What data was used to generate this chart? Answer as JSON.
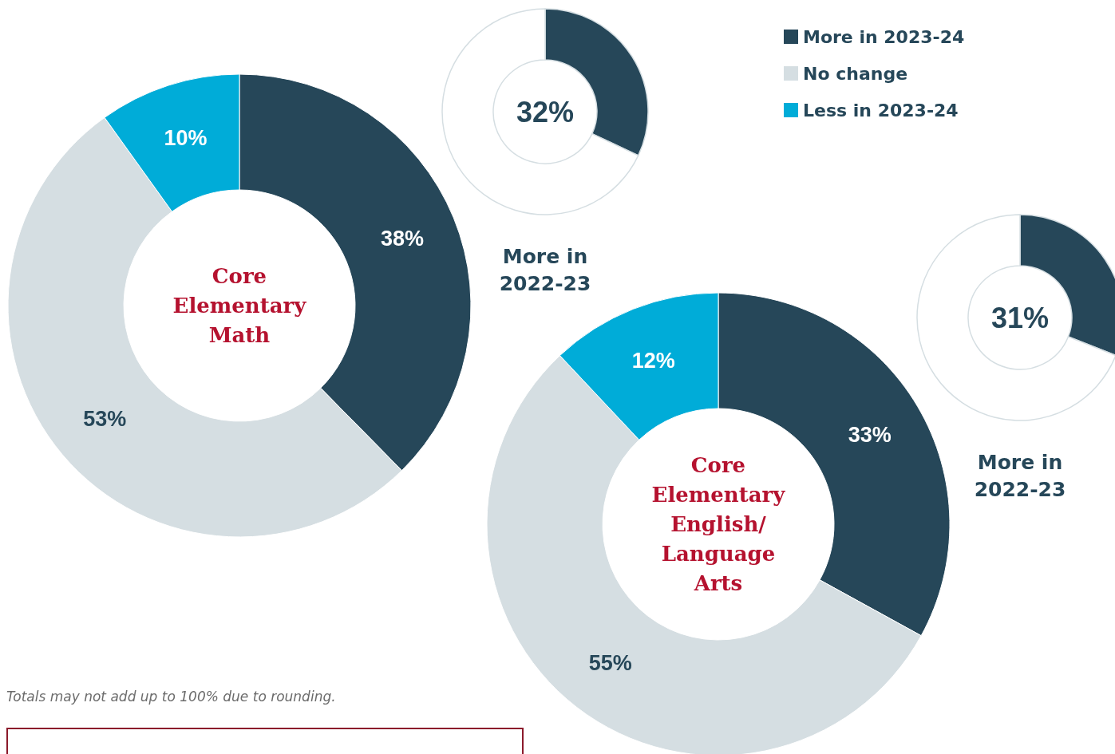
{
  "chart_data": [
    {
      "type": "donut",
      "title": "Core Elementary Math",
      "categories": [
        "More in 2023-24",
        "No change",
        "Less in 2023-24"
      ],
      "values": [
        38,
        53,
        10
      ],
      "colors": [
        "#264759",
        "#d5dee2",
        "#00acd8"
      ],
      "value_labels": [
        "38%",
        "53%",
        "10%"
      ],
      "legend": "top right",
      "annotations": [
        "Totals may not add up to 100% due to rounding."
      ]
    },
    {
      "type": "donut",
      "title": "More in 2022-23",
      "categories": [
        null,
        null
      ],
      "values": [
        32,
        68
      ],
      "colors": [
        "#264759",
        "#ffffff"
      ],
      "value_labels": [
        "32%",
        null
      ]
    },
    {
      "type": "donut",
      "title": "Core Elementary English/ Language Arts",
      "categories": [
        null,
        null,
        null
      ],
      "values": [
        33,
        55,
        12
      ],
      "colors": [
        "#264759",
        "#d5dee2",
        "#00acd8"
      ],
      "value_labels": [
        "33%",
        "55%",
        "12%"
      ]
    },
    {
      "type": "donut",
      "title": "More in 2022-23",
      "categories": [
        null,
        null
      ],
      "values": [
        31,
        69
      ],
      "colors": [
        "#264759",
        "#ffffff"
      ],
      "value_labels": [
        "31%",
        null
      ]
    }
  ]
}
